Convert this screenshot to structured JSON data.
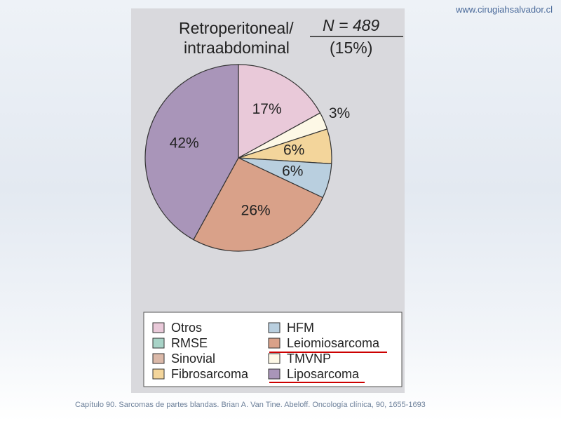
{
  "website": "www.cirugiahsalvador.cl",
  "caption": "Capítulo 90. Sarcomas de partes blandas. Brian A. Van Tine. Abeloff. Oncología clínica, 90, 1655-1693",
  "chart_data": {
    "type": "pie",
    "title": [
      "Retroperitoneal/",
      "intraabdominal"
    ],
    "subtitle": [
      "N = 489",
      "(15%)"
    ],
    "categories": [
      "Otros",
      "TMVNP",
      "Fibrosarcoma",
      "HFM",
      "Leiomiosarcoma",
      "Liposarcoma",
      "RMSE",
      "Sinovial"
    ],
    "values": [
      17,
      3,
      6,
      6,
      26,
      42,
      null,
      null
    ],
    "value_labels": [
      "17%",
      "3%",
      "6%",
      "6%",
      "26%",
      "42%",
      null,
      null
    ],
    "colors": [
      "#e9c9d9",
      "#fdf8e6",
      "#f3d59b",
      "#b9cfdf",
      "#d9a189",
      "#a995b9",
      "#a8d3c7",
      "#dbb9a9"
    ]
  }
}
